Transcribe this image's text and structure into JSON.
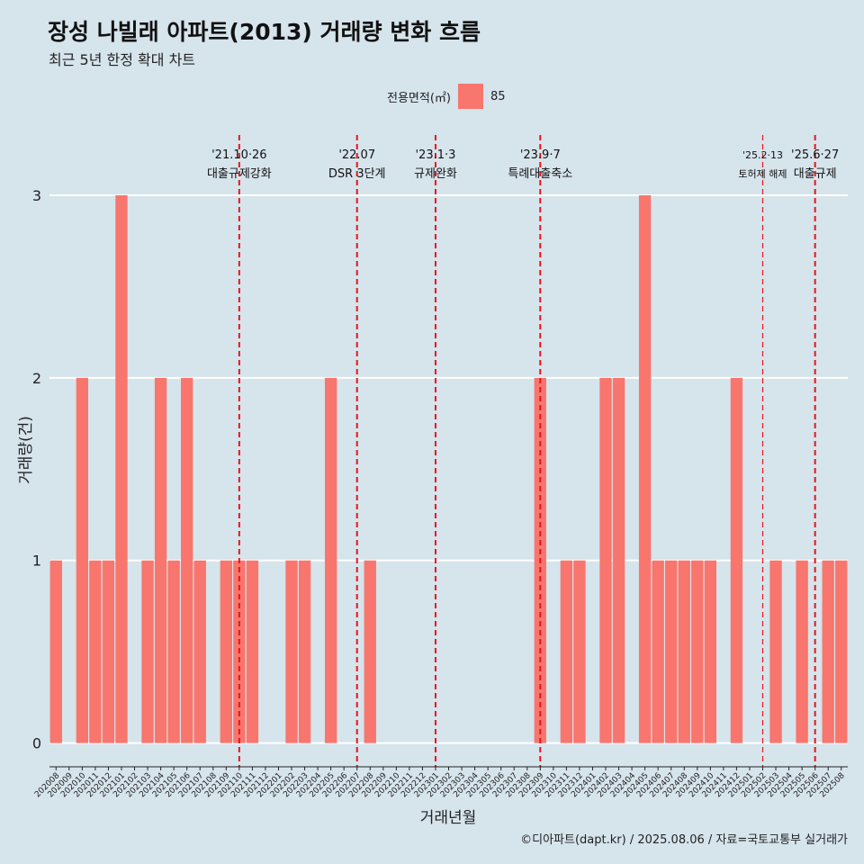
{
  "title": "장성 나빌래 아파트(2013) 거래량 변화 흐름",
  "subtitle": "최근 5년 한정 확대 차트",
  "caption": "©디아파트(dapt.kr) / 2025.08.06 / 자료=국토교통부 실거래가",
  "colors": {
    "background": "#d6e4ec",
    "bar": "#f8766d",
    "event_line": "#e8141c",
    "grid": "#ffffff"
  },
  "chart_data": {
    "type": "bar",
    "xlabel": "거래년월",
    "ylabel": "거래량(건)",
    "ylim": [
      -0.13,
      3.33
    ],
    "yticks": [
      0,
      1,
      2,
      3
    ],
    "grid": true,
    "legend": {
      "title": "전용면적(㎡)",
      "position": "top",
      "entries": [
        "85"
      ]
    },
    "categories": [
      "202008",
      "202009",
      "202010",
      "202011",
      "202012",
      "202101",
      "202102",
      "202103",
      "202104",
      "202105",
      "202106",
      "202107",
      "202108",
      "202109",
      "202110",
      "202111",
      "202112",
      "202201",
      "202202",
      "202203",
      "202204",
      "202205",
      "202206",
      "202207",
      "202208",
      "202209",
      "202210",
      "202211",
      "202212",
      "202301",
      "202302",
      "202303",
      "202304",
      "202305",
      "202306",
      "202307",
      "202308",
      "202309",
      "202310",
      "202311",
      "202312",
      "202401",
      "202402",
      "202403",
      "202404",
      "202405",
      "202406",
      "202407",
      "202408",
      "202409",
      "202410",
      "202411",
      "202412",
      "202501",
      "202502",
      "202503",
      "202504",
      "202505",
      "202506",
      "202507",
      "202508"
    ],
    "series": [
      {
        "name": "85",
        "values": [
          1,
          0,
          2,
          1,
          1,
          3,
          0,
          1,
          2,
          1,
          2,
          1,
          0,
          1,
          1,
          1,
          0,
          0,
          1,
          1,
          0,
          2,
          0,
          0,
          1,
          0,
          0,
          0,
          0,
          0,
          0,
          0,
          0,
          0,
          0,
          0,
          0,
          2,
          0,
          1,
          1,
          0,
          2,
          2,
          0,
          3,
          1,
          1,
          1,
          1,
          1,
          0,
          2,
          0,
          0,
          1,
          0,
          1,
          0,
          1,
          1
        ]
      }
    ],
    "events": [
      {
        "month": "202110",
        "date": "'21.10·26",
        "label": "대출규제강화"
      },
      {
        "month": "202207",
        "date": "'22.07",
        "label": "DSR 3단계"
      },
      {
        "month": "202301",
        "date": "'23.1·3",
        "label": "규제완화"
      },
      {
        "month": "202309",
        "date": "'23.9·7",
        "label": "특례대출축소"
      },
      {
        "month": "202502",
        "date": "'25.2·13",
        "label": "토허제 해제"
      },
      {
        "month": "202506",
        "date": "'25.6·27",
        "label": "대출규제"
      }
    ]
  }
}
